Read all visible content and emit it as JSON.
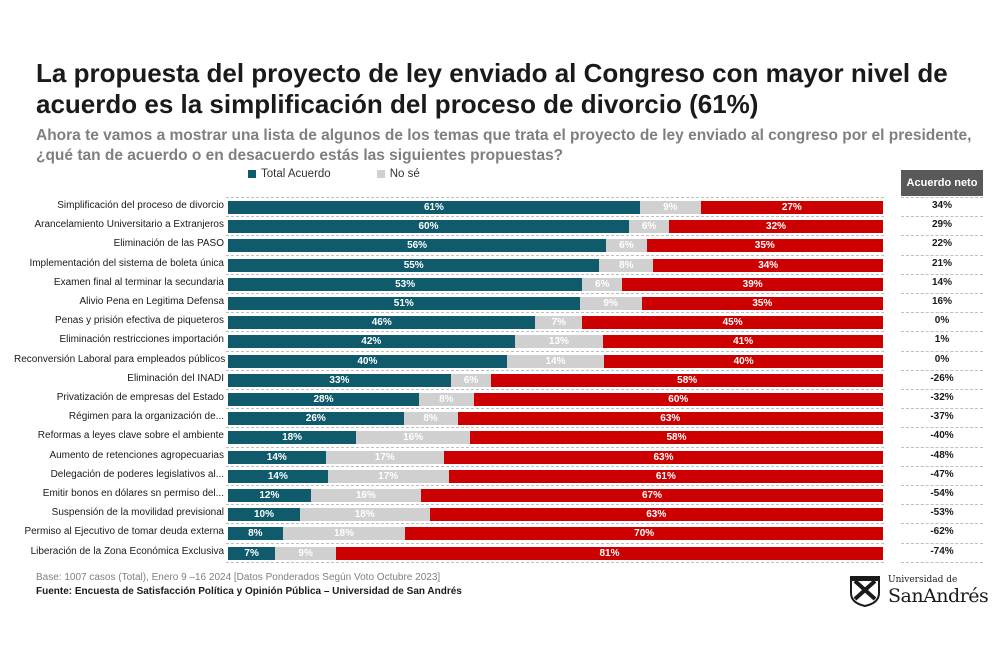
{
  "chart_data": {
    "type": "bar",
    "stacked": true,
    "orientation": "horizontal",
    "title": "La propuesta del proyecto de ley enviado al Congreso con mayor nivel de acuerdo es la simplificación del proceso de divorcio (61%)",
    "subtitle": "Ahora te vamos a mostrar una lista de algunos de los temas que trata el proyecto de ley enviado al congreso por el presidente, ¿qué tan de acuerdo o en desacuerdo estás las siguientes propuestas?",
    "legend": {
      "placement": "top-left",
      "entries": [
        "Total Acuerdo",
        "No sé"
      ]
    },
    "net_header": "Acuerdo neto",
    "categories": [
      "Simplificación del proceso de divorcio",
      "Arancelamiento Universitario a Extranjeros",
      "Eliminación de las PASO",
      "Implementación del sistema de boleta única",
      "Examen final al terminar la secundaria",
      "Alivio Pena en Legitima Defensa",
      "Penas y prisión efectiva de piqueteros",
      "Eliminación restricciones importación",
      "Reconversión Laboral para empleados públicos",
      "Eliminación del INADI",
      "Privatización de empresas del Estado",
      "Régimen para la organización de...",
      "Reformas a leyes clave sobre el ambiente",
      "Aumento de retenciones agropecuarias",
      "Delegación de poderes legislativos al...",
      "Emitir bonos en dólares sn permiso del...",
      "Suspensión de la movilidad previsional",
      "Permiso al Ejecutivo de tomar deuda externa",
      "Liberación de la Zona Económica Exclusiva"
    ],
    "series": [
      {
        "name": "Total Acuerdo",
        "color": "#0f5b6b",
        "values": [
          61,
          60,
          56,
          55,
          53,
          51,
          46,
          42,
          40,
          33,
          28,
          26,
          18,
          14,
          14,
          12,
          10,
          8,
          7
        ]
      },
      {
        "name": "No sé",
        "color": "#d0d0d0",
        "values": [
          9,
          6,
          6,
          8,
          6,
          9,
          7,
          13,
          14,
          6,
          8,
          8,
          16,
          17,
          17,
          16,
          18,
          18,
          9
        ]
      },
      {
        "color": "#cc0000",
        "values": [
          27,
          32,
          35,
          34,
          39,
          35,
          45,
          41,
          40,
          58,
          60,
          63,
          58,
          63,
          61,
          67,
          63,
          70,
          81
        ]
      }
    ],
    "net_values": [
      "34%",
      "29%",
      "22%",
      "21%",
      "14%",
      "16%",
      "0%",
      "1%",
      "0%",
      "-26%",
      "-32%",
      "-37%",
      "-40%",
      "-48%",
      "-47%",
      "-54%",
      "-53%",
      "-62%",
      "-74%"
    ],
    "xlim": [
      0,
      100
    ],
    "grid": false
  },
  "footer": {
    "base": "Base: 1007 casos (Total), Enero 9 –16 2024 [Datos Ponderados Según Voto Octubre 2023]",
    "source": "Fuente: Encuesta de Satisfacción Política y Opinión Pública – Universidad de San Andrés"
  },
  "logo": {
    "icon": "university-crest-icon",
    "line1": "Universidad de",
    "line2": "SanAndrés"
  }
}
